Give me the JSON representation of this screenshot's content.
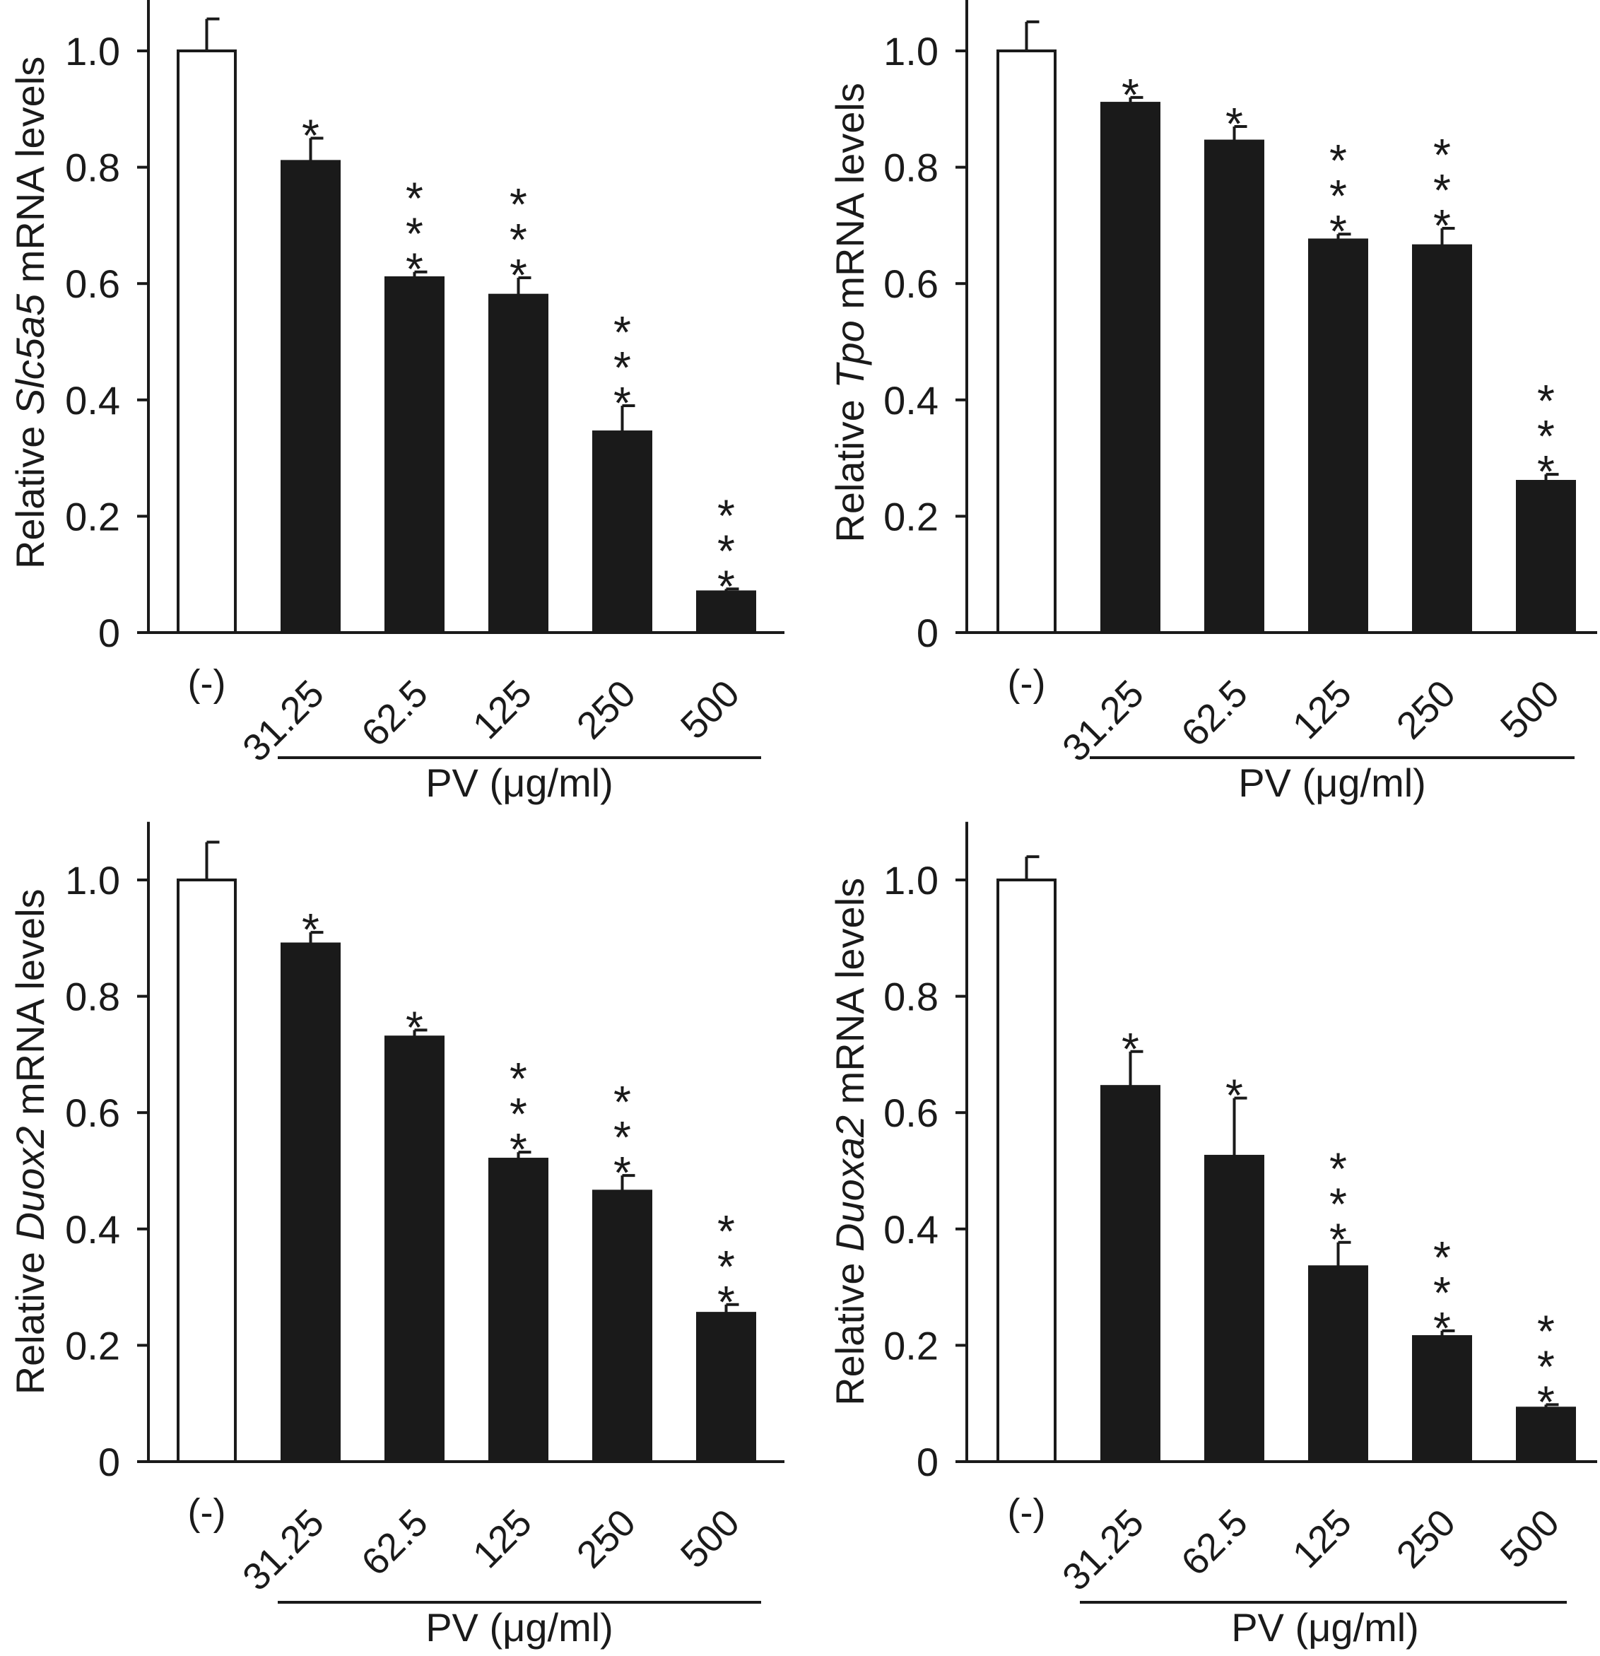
{
  "colors": {
    "axis": "#1a1a1a",
    "control_bar": "#ffffff",
    "treated_bar": "#1a1a1a",
    "background": "#ffffff"
  },
  "chart_data": [
    {
      "type": "bar",
      "gene": "Slc5a5",
      "ylabel": {
        "prefix": "Relative ",
        "gene": "Slc5a5",
        "suffix": " mRNA levels"
      },
      "xlabel": "PV (μg/ml)",
      "categories": [
        "(-)",
        "31.25",
        "62.5",
        "125",
        "250",
        "500"
      ],
      "values": [
        1.0,
        0.81,
        0.61,
        0.58,
        0.345,
        0.07
      ],
      "errors": [
        0.055,
        0.04,
        0.01,
        0.03,
        0.045,
        0.005
      ],
      "significance": [
        "",
        "*",
        "***",
        "***",
        "***",
        "***"
      ],
      "control_index": 0,
      "ylim": [
        0,
        1.1
      ],
      "yticks": [
        "0",
        "0.2",
        "0.4",
        "0.6",
        "0.8",
        "1.0"
      ]
    },
    {
      "type": "bar",
      "gene": "Tpo",
      "ylabel": {
        "prefix": "Relative ",
        "gene": "Tpo",
        "suffix": " mRNA levels"
      },
      "xlabel": "PV (μg/ml)",
      "categories": [
        "(-)",
        "31.25",
        "62.5",
        "125",
        "250",
        "500"
      ],
      "values": [
        1.0,
        0.91,
        0.845,
        0.675,
        0.665,
        0.26
      ],
      "errors": [
        0.05,
        0.01,
        0.025,
        0.01,
        0.03,
        0.012
      ],
      "significance": [
        "",
        "*",
        "*",
        "***",
        "***",
        "***"
      ],
      "control_index": 0,
      "ylim": [
        0,
        1.1
      ],
      "yticks": [
        "0",
        "0.2",
        "0.4",
        "0.6",
        "0.8",
        "1.0"
      ]
    },
    {
      "type": "bar",
      "gene": "Duox2",
      "ylabel": {
        "prefix": "Relative ",
        "gene": "Duox2",
        "suffix": " mRNA levels"
      },
      "xlabel": "PV (μg/ml)",
      "categories": [
        "(-)",
        "31.25",
        "62.5",
        "125",
        "250",
        "500"
      ],
      "values": [
        1.0,
        0.89,
        0.73,
        0.52,
        0.465,
        0.255
      ],
      "errors": [
        0.065,
        0.02,
        0.012,
        0.012,
        0.027,
        0.015
      ],
      "significance": [
        "",
        "*",
        "*",
        "***",
        "***",
        "***"
      ],
      "control_index": 0,
      "ylim": [
        0,
        1.1
      ],
      "yticks": [
        "0",
        "0.2",
        "0.4",
        "0.6",
        "0.8",
        "1.0"
      ]
    },
    {
      "type": "bar",
      "gene": "Duoxa2",
      "ylabel": {
        "prefix": "Relative ",
        "gene": "Duoxa2",
        "suffix": " mRNA levels"
      },
      "xlabel": "PV (μg/ml)",
      "categories": [
        "(-)",
        "31.25",
        "62.5",
        "125",
        "250",
        "500"
      ],
      "values": [
        1.0,
        0.645,
        0.525,
        0.335,
        0.215,
        0.092
      ],
      "errors": [
        0.04,
        0.06,
        0.1,
        0.042,
        0.01,
        0.006
      ],
      "significance": [
        "",
        "*",
        "*",
        "***",
        "***",
        "***"
      ],
      "control_index": 0,
      "ylim": [
        0,
        1.1
      ],
      "yticks": [
        "0",
        "0.2",
        "0.4",
        "0.6",
        "0.8",
        "1.0"
      ]
    }
  ]
}
